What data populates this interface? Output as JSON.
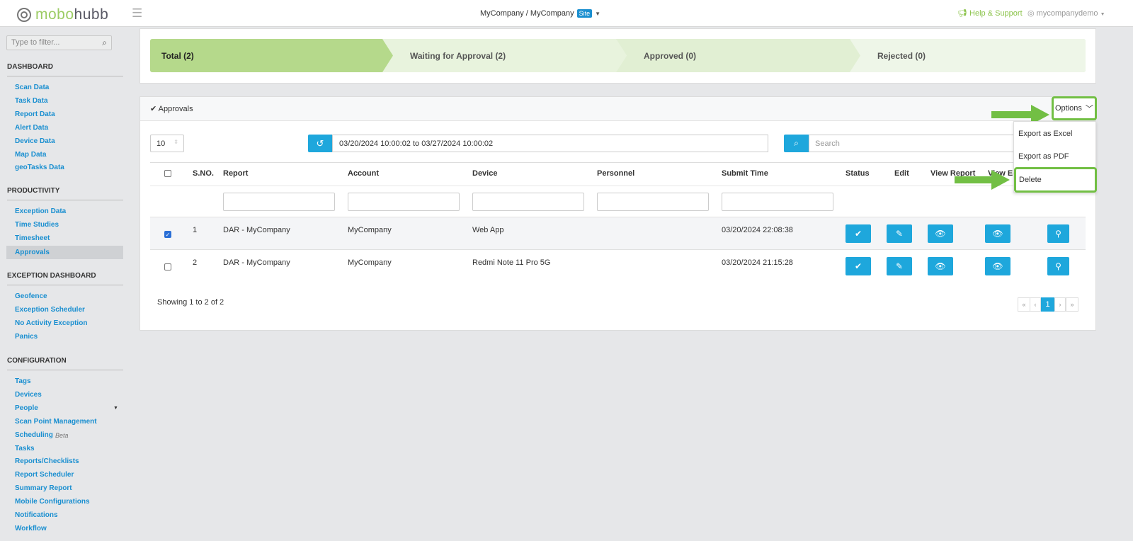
{
  "header": {
    "brand_part1": "mobo",
    "brand_part2": "hubb",
    "org": "MyCompany / MyCompany",
    "org_badge": "Site",
    "help": "Help & Support",
    "user": "mycompanydemo"
  },
  "sidebar": {
    "filter_placeholder": "Type to filter...",
    "sections": [
      {
        "title": "DASHBOARD",
        "items": [
          "Scan Data",
          "Task Data",
          "Report Data",
          "Alert Data",
          "Device Data",
          "Map Data",
          "geoTasks Data"
        ]
      },
      {
        "title": "PRODUCTIVITY",
        "items": [
          "Exception Data",
          "Time Studies",
          "Timesheet",
          "Approvals"
        ]
      },
      {
        "title": "EXCEPTION DASHBOARD",
        "items": [
          "Geofence",
          "Exception Scheduler",
          "No Activity Exception",
          "Panics"
        ]
      },
      {
        "title": "CONFIGURATION",
        "items": [
          "Tags",
          "Devices",
          "People",
          "Scan Point Management",
          "Scheduling",
          "Tasks",
          "Reports/Checklists",
          "Report Scheduler",
          "Summary Report",
          "Mobile Configurations",
          "Notifications",
          "Workflow"
        ]
      }
    ],
    "active_item": "Approvals",
    "beta_label": "Beta"
  },
  "status_tabs": [
    "Total (2)",
    "Waiting for Approval (2)",
    "Approved (0)",
    "Rejected (0)"
  ],
  "panel": {
    "title": "Approvals",
    "options_label": "Options",
    "options_menu": [
      "Export as Excel",
      "Export as PDF",
      "Delete"
    ],
    "page_size": "10",
    "date_range": "03/20/2024 10:00:02 to 03/27/2024 10:00:02",
    "search_placeholder": "Search",
    "columns": [
      "S.NO.",
      "Report",
      "Account",
      "Device",
      "Personnel",
      "Submit Time",
      "Status",
      "Edit",
      "View Report",
      "View Ed"
    ],
    "rows": [
      {
        "checked": true,
        "sno": "1",
        "report": "DAR - MyCompany",
        "account": "MyCompany",
        "device": "Web App",
        "personnel": "",
        "submit": "03/20/2024 22:08:38"
      },
      {
        "checked": false,
        "sno": "2",
        "report": "DAR - MyCompany",
        "account": "MyCompany",
        "device": "Redmi Note 11 Pro 5G",
        "personnel": "",
        "submit": "03/20/2024 21:15:28"
      }
    ],
    "showing": "Showing 1 to 2 of 2",
    "pagination": {
      "first": "«",
      "prev": "‹",
      "current": "1",
      "next": "›",
      "last": "»"
    }
  },
  "colors": {
    "accent": "#1ea7dc",
    "green": "#72bf44",
    "link": "#1a8fd0"
  }
}
